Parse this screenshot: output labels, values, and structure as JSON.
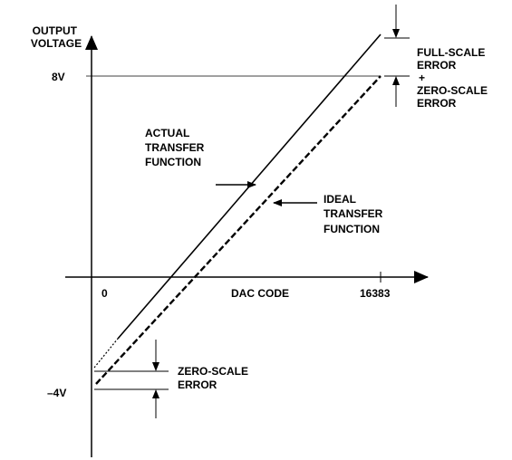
{
  "y_axis_label": [
    "OUTPUT",
    "VOLTAGE"
  ],
  "y_tick_top": "8V",
  "y_tick_bottom": "–4V",
  "x_tick_start": "0",
  "x_axis_label": "DAC CODE",
  "x_tick_end": "16383",
  "actual_label": [
    "ACTUAL",
    "TRANSFER",
    "FUNCTION"
  ],
  "ideal_label": [
    "IDEAL",
    "TRANSFER",
    "FUNCTION"
  ],
  "full_scale_label": [
    "FULL-SCALE",
    "ERROR",
    "+",
    "ZERO-SCALE",
    "ERROR"
  ],
  "zero_scale_label": [
    "ZERO-SCALE",
    "ERROR"
  ]
}
